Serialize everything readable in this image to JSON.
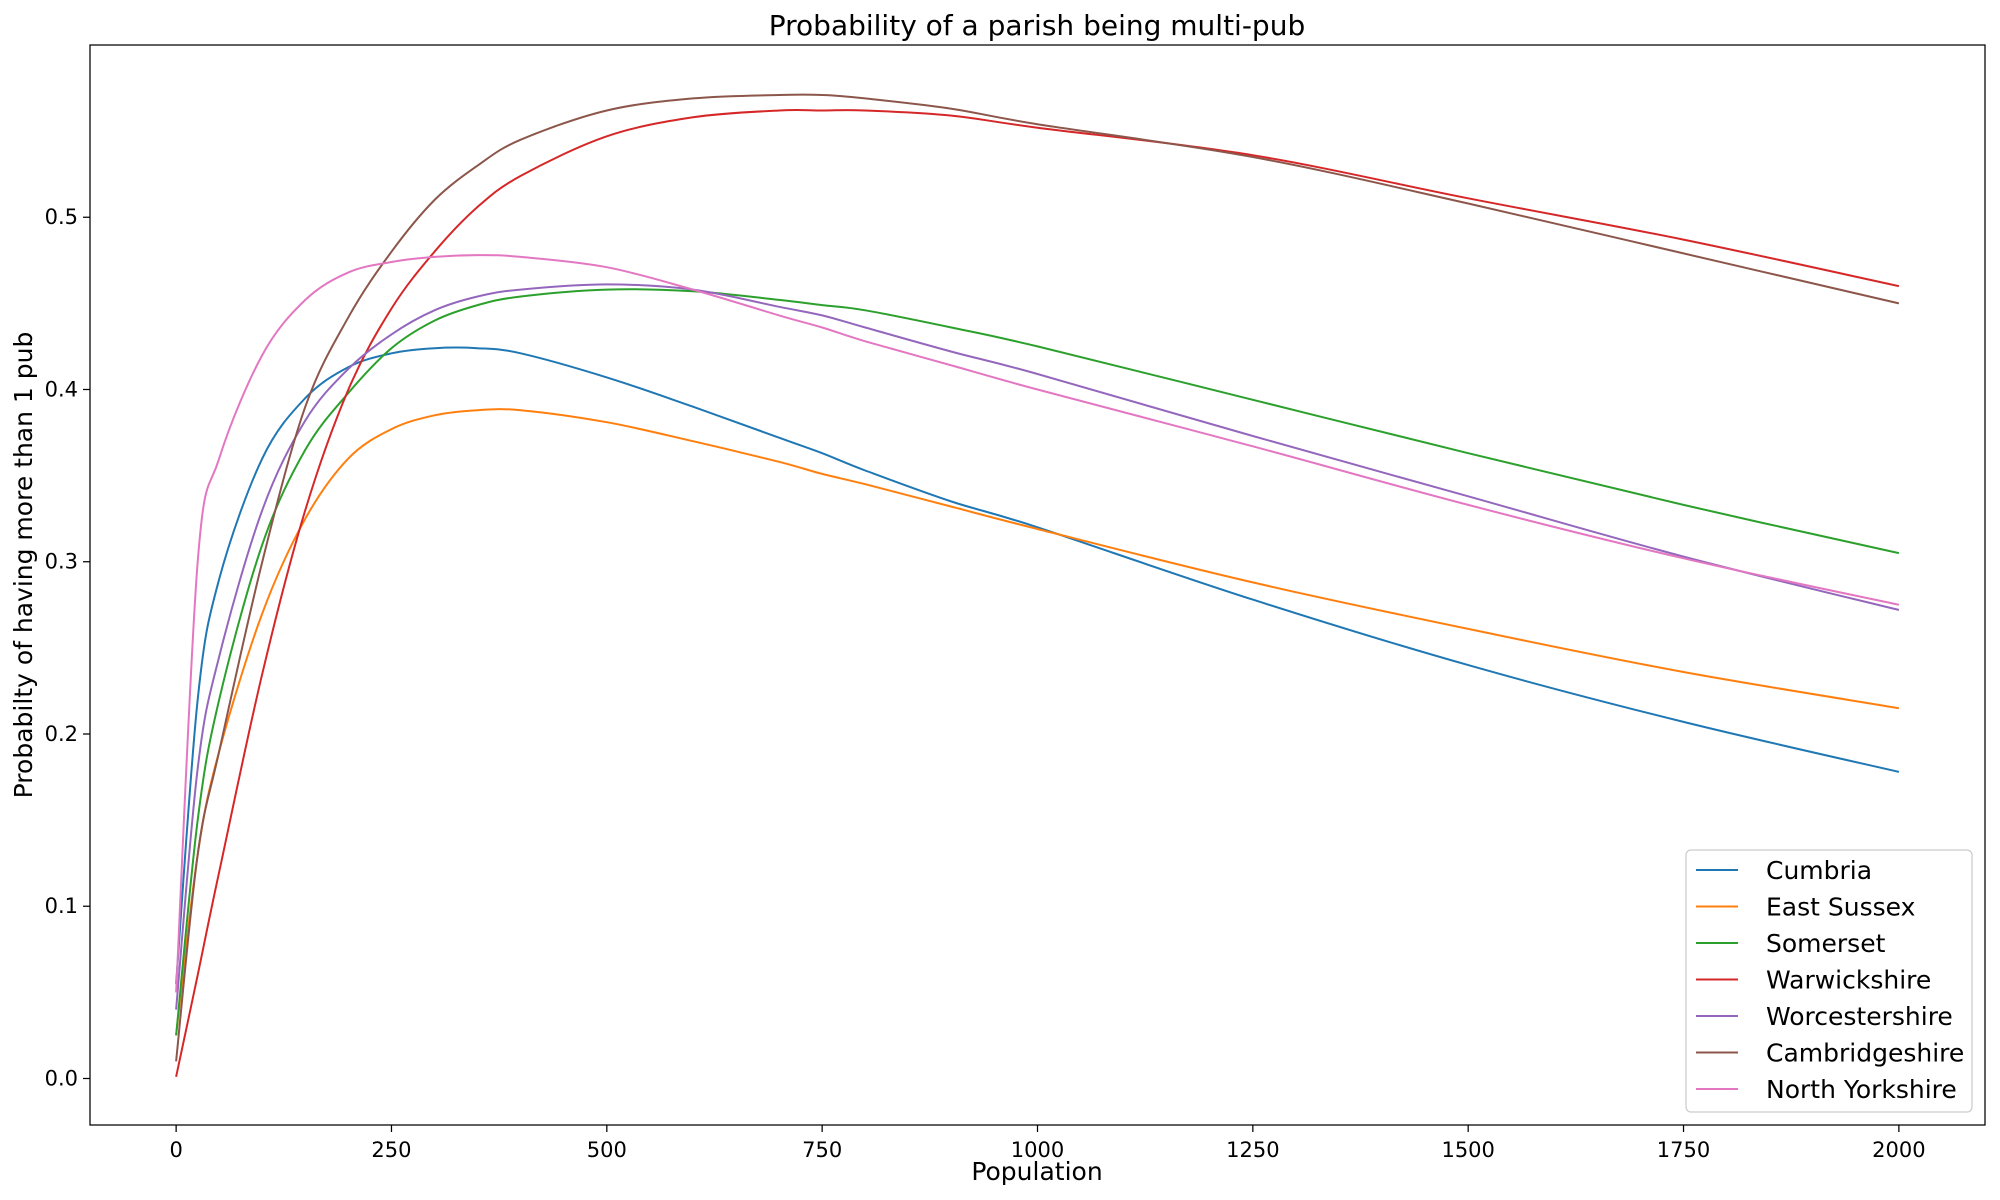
{
  "chart_data": {
    "type": "line",
    "title": "Probability of a parish being multi-pub",
    "xlabel": "Population",
    "ylabel": "Probabilty of having more than 1 pub",
    "xlim": [
      -100,
      2100
    ],
    "ylim": [
      -0.027,
      0.6
    ],
    "xticks": [
      0,
      250,
      500,
      750,
      1000,
      1250,
      1500,
      1750,
      2000
    ],
    "xtick_labels": [
      "0",
      "250",
      "500",
      "750",
      "1000",
      "1250",
      "1500",
      "1750",
      "2000"
    ],
    "yticks": [
      0.0,
      0.1,
      0.2,
      0.3,
      0.4,
      0.5
    ],
    "ytick_labels": [
      "0.0",
      "0.1",
      "0.2",
      "0.3",
      "0.4",
      "0.5"
    ],
    "grid": false,
    "legend_position": "bottom-right",
    "x": [
      0,
      25,
      50,
      100,
      150,
      200,
      250,
      300,
      350,
      400,
      500,
      600,
      700,
      750,
      800,
      900,
      1000,
      1250,
      1500,
      1750,
      2000
    ],
    "series": [
      {
        "name": "Cumbria",
        "color": "#1f77b4",
        "values": [
          0.055,
          0.22,
          0.29,
          0.36,
          0.395,
          0.413,
          0.421,
          0.424,
          0.424,
          0.421,
          0.407,
          0.39,
          0.372,
          0.363,
          0.353,
          0.335,
          0.32,
          0.278,
          0.24,
          0.207,
          0.178
        ]
      },
      {
        "name": "East Sussex",
        "color": "#ff7f0e",
        "values": [
          0.025,
          0.13,
          0.19,
          0.27,
          0.325,
          0.36,
          0.377,
          0.385,
          0.388,
          0.388,
          0.381,
          0.37,
          0.358,
          0.351,
          0.345,
          0.332,
          0.319,
          0.288,
          0.261,
          0.236,
          0.215
        ]
      },
      {
        "name": "Somerset",
        "color": "#2ca02c",
        "values": [
          0.025,
          0.15,
          0.22,
          0.31,
          0.365,
          0.398,
          0.424,
          0.44,
          0.449,
          0.454,
          0.458,
          0.457,
          0.452,
          0.449,
          0.446,
          0.436,
          0.425,
          0.394,
          0.363,
          0.333,
          0.305
        ]
      },
      {
        "name": "Warwickshire",
        "color": "#d62728",
        "values": [
          0.001,
          0.06,
          0.12,
          0.235,
          0.33,
          0.4,
          0.447,
          0.48,
          0.506,
          0.524,
          0.547,
          0.558,
          0.562,
          0.562,
          0.562,
          0.559,
          0.552,
          0.536,
          0.511,
          0.487,
          0.46
        ]
      },
      {
        "name": "Worcestershire",
        "color": "#9467bd",
        "values": [
          0.04,
          0.18,
          0.245,
          0.33,
          0.382,
          0.412,
          0.432,
          0.446,
          0.454,
          0.458,
          0.461,
          0.458,
          0.448,
          0.443,
          0.436,
          0.422,
          0.409,
          0.373,
          0.338,
          0.303,
          0.272
        ]
      },
      {
        "name": "Cambridgeshire",
        "color": "#8c564b",
        "values": [
          0.01,
          0.13,
          0.19,
          0.3,
          0.39,
          0.442,
          0.48,
          0.51,
          0.53,
          0.545,
          0.562,
          0.569,
          0.571,
          0.571,
          0.569,
          0.563,
          0.554,
          0.535,
          0.508,
          0.479,
          0.45
        ]
      },
      {
        "name": "North Yorkshire",
        "color": "#e377c2",
        "values": [
          0.05,
          0.3,
          0.36,
          0.42,
          0.452,
          0.468,
          0.474,
          0.477,
          0.478,
          0.477,
          0.471,
          0.458,
          0.443,
          0.436,
          0.428,
          0.414,
          0.4,
          0.367,
          0.333,
          0.302,
          0.275
        ]
      }
    ]
  }
}
